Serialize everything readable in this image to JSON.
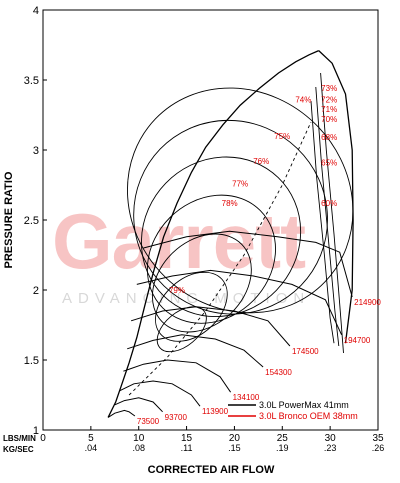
{
  "watermark": {
    "brand": "Garrett",
    "tagline": "ADVANCING MOTION"
  },
  "chart_data": {
    "type": "compressor-map",
    "xlabel": "CORRECTED AIR FLOW",
    "ylabel": "PRESSURE RATIO",
    "x_unit_primary": "LBS/MIN",
    "x_unit_secondary": "KG/SEC",
    "xlim": [
      0,
      35
    ],
    "ylim": [
      1,
      4
    ],
    "x_ticks": [
      0,
      5,
      10,
      15,
      20,
      25,
      30,
      35
    ],
    "x_ticks_secondary": [
      "",
      ".04",
      ".08",
      ".11",
      ".15",
      ".19",
      ".23",
      ".26"
    ],
    "y_ticks": [
      "1",
      "1.5",
      "2",
      "2.5",
      "3",
      "3.5",
      "4"
    ],
    "efficiency_labels": [
      {
        "text": "73%",
        "x": 29.9,
        "y": 3.42
      },
      {
        "text": "72%",
        "x": 29.9,
        "y": 3.34
      },
      {
        "text": "74%",
        "x": 27.2,
        "y": 3.34
      },
      {
        "text": "71%",
        "x": 29.9,
        "y": 3.27
      },
      {
        "text": "70%",
        "x": 29.9,
        "y": 3.2
      },
      {
        "text": "68%",
        "x": 29.9,
        "y": 3.07
      },
      {
        "text": "75%",
        "x": 25.0,
        "y": 3.08
      },
      {
        "text": "65%",
        "x": 29.9,
        "y": 2.89
      },
      {
        "text": "76%",
        "x": 22.8,
        "y": 2.9
      },
      {
        "text": "77%",
        "x": 20.6,
        "y": 2.74
      },
      {
        "text": "78%",
        "x": 19.5,
        "y": 2.6
      },
      {
        "text": "60%",
        "x": 29.9,
        "y": 2.6
      },
      {
        "text": "79%",
        "x": 14.0,
        "y": 1.98
      }
    ],
    "speed_lines": [
      {
        "label": "73500",
        "x": [
          6.8,
          7.5,
          8.5,
          9.0,
          9.6
        ],
        "y": [
          1.09,
          1.12,
          1.14,
          1.13,
          1.1
        ]
      },
      {
        "label": "93700",
        "x": [
          7.5,
          8.5,
          10.0,
          11.5,
          12.5
        ],
        "y": [
          1.18,
          1.21,
          1.23,
          1.2,
          1.13
        ]
      },
      {
        "label": "113900",
        "x": [
          8.0,
          9.5,
          11.5,
          13.5,
          15.5,
          16.4
        ],
        "y": [
          1.28,
          1.33,
          1.35,
          1.33,
          1.25,
          1.17
        ]
      },
      {
        "label": "134100",
        "x": [
          8.4,
          10.5,
          13.0,
          16.0,
          18.5,
          19.6
        ],
        "y": [
          1.42,
          1.47,
          1.5,
          1.48,
          1.38,
          1.27
        ]
      },
      {
        "label": "154300",
        "x": [
          8.8,
          11.5,
          14.5,
          18.0,
          21.0,
          23.0
        ],
        "y": [
          1.58,
          1.64,
          1.68,
          1.65,
          1.57,
          1.45
        ]
      },
      {
        "label": "174500",
        "x": [
          9.2,
          12.5,
          16.0,
          20.0,
          23.5,
          25.8
        ],
        "y": [
          1.78,
          1.85,
          1.88,
          1.85,
          1.78,
          1.6
        ]
      },
      {
        "label": "194700",
        "x": [
          9.8,
          13.5,
          17.5,
          22.0,
          26.0,
          29.5,
          31.2
        ],
        "y": [
          2.04,
          2.1,
          2.14,
          2.1,
          2.04,
          1.93,
          1.68
        ]
      },
      {
        "label": "214900",
        "x": [
          10.5,
          15.0,
          19.5,
          24.5,
          28.5,
          31.0,
          32.3
        ],
        "y": [
          2.3,
          2.38,
          2.42,
          2.38,
          2.34,
          2.27,
          1.95
        ]
      }
    ],
    "series": [
      {
        "name": "3.0L PowerMax 41mm",
        "color": "#000000",
        "x": [],
        "y": []
      },
      {
        "name": "3.0L Bronco OEM 38mm",
        "color": "#e00000",
        "x": [],
        "y": []
      }
    ],
    "grid": false,
    "legend_position": "bottom-right"
  }
}
